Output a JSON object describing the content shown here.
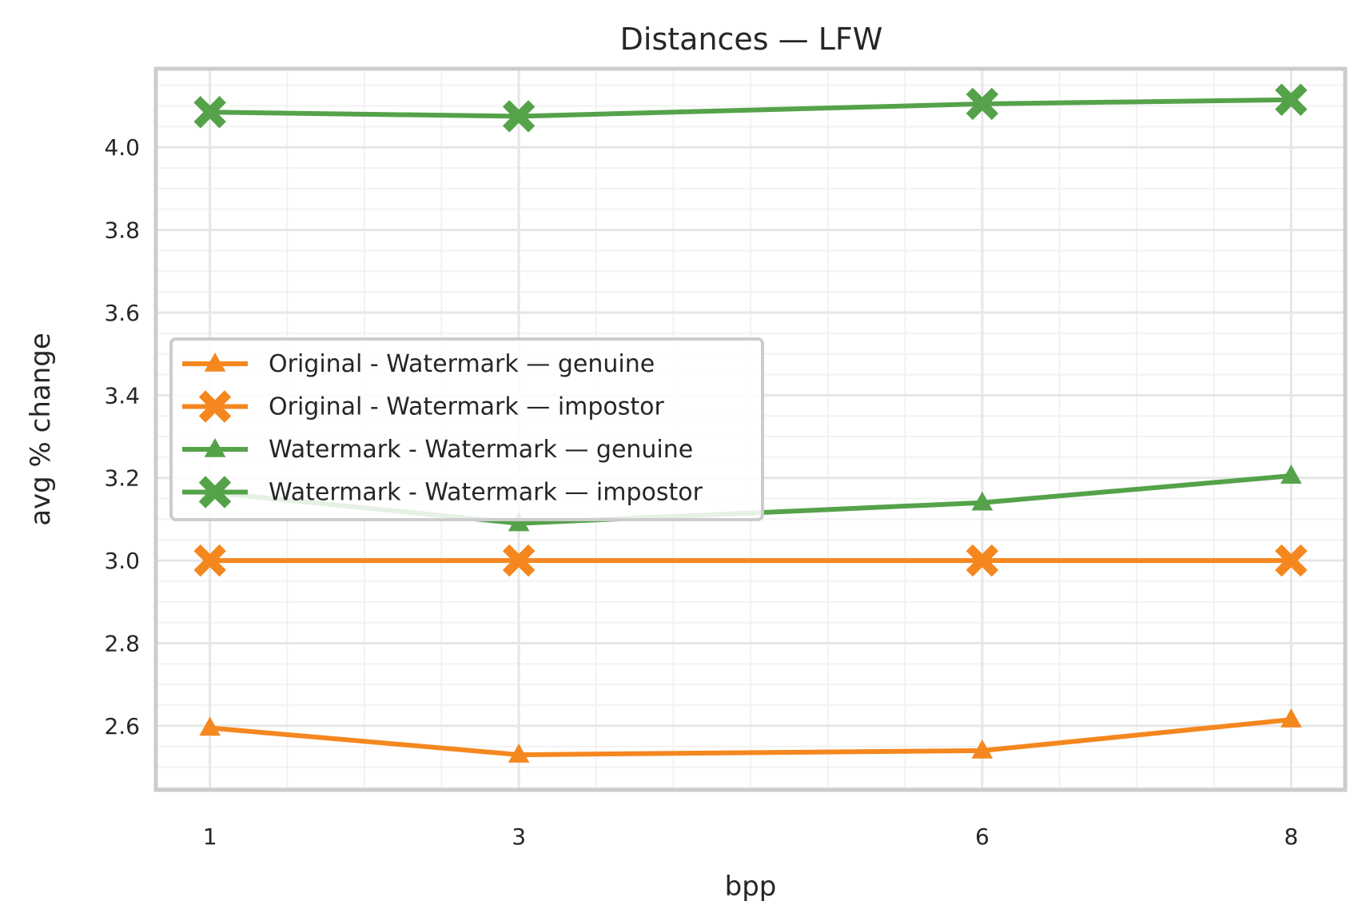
{
  "chart_data": {
    "type": "line",
    "title": "Distances — LFW",
    "xlabel": "bpp",
    "ylabel": "avg % change",
    "x": [
      1,
      3,
      6,
      8
    ],
    "x_tick_labels": [
      "1",
      "3",
      "6",
      "8"
    ],
    "xlim": [
      0.65,
      8.35
    ],
    "ylim": [
      2.445,
      4.19
    ],
    "y_ticks": [
      2.6,
      2.8,
      3.0,
      3.2,
      3.4,
      3.6,
      3.8,
      4.0
    ],
    "y_tick_labels": [
      "2.6",
      "2.8",
      "3.0",
      "3.2",
      "3.4",
      "3.6",
      "3.8",
      "4.0"
    ],
    "grid": true,
    "minor_grid": true,
    "legend_position": "center-left",
    "series": [
      {
        "name": "Original - Watermark — genuine",
        "color": "#f5871f",
        "marker": "triangle",
        "values": [
          2.595,
          2.53,
          2.54,
          2.615
        ]
      },
      {
        "name": "Original - Watermark — impostor",
        "color": "#f5871f",
        "marker": "x",
        "values": [
          3.0,
          3.0,
          3.0,
          3.0
        ]
      },
      {
        "name": "Watermark - Watermark — genuine",
        "color": "#55a24a",
        "marker": "triangle",
        "values": [
          3.165,
          3.09,
          3.14,
          3.205
        ]
      },
      {
        "name": "Watermark - Watermark — impostor",
        "color": "#55a24a",
        "marker": "x",
        "values": [
          4.085,
          4.075,
          4.105,
          4.115
        ]
      }
    ]
  }
}
